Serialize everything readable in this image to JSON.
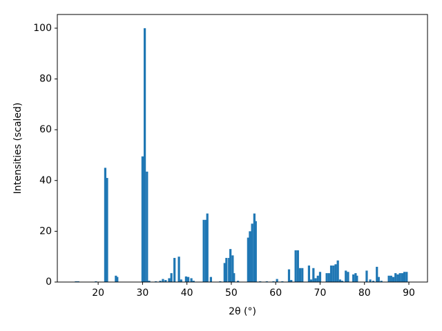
{
  "chart_data": {
    "type": "bar",
    "xlabel": "2θ (°)",
    "ylabel": "Intensities (scaled)",
    "color": "#1f77b4",
    "x": [
      15.0,
      15.5,
      19.5,
      21.6,
      22.0,
      24.0,
      24.3,
      30.0,
      30.5,
      31.0,
      31.5,
      33.0,
      34.0,
      34.6,
      35.2,
      36.0,
      36.5,
      37.2,
      38.2,
      38.7,
      39.8,
      40.3,
      41.0,
      41.5,
      43.8,
      44.3,
      44.6,
      45.4,
      47.5,
      48.5,
      48.9,
      49.5,
      49.8,
      50.3,
      50.6,
      51.5,
      53.8,
      54.2,
      54.7,
      55.2,
      55.5,
      56.5,
      58.0,
      59.5,
      60.3,
      61.5,
      63.0,
      63.5,
      64.5,
      65.0,
      65.5,
      66.0,
      67.5,
      68.0,
      68.5,
      69.0,
      69.5,
      70.0,
      71.5,
      72.0,
      72.5,
      73.0,
      73.5,
      74.0,
      74.5,
      75.0,
      75.8,
      76.3,
      77.5,
      78.0,
      78.3,
      80.5,
      81.3,
      82.0,
      82.8,
      83.2,
      83.8,
      85.5,
      86.0,
      86.5,
      87.0,
      87.5,
      88.0,
      88.5,
      89.0,
      89.5
    ],
    "values": [
      0.3,
      0.3,
      0.3,
      45,
      41,
      2.5,
      2,
      49.5,
      100,
      43.5,
      0.5,
      0.3,
      0.5,
      1.2,
      0.8,
      1.5,
      3.5,
      9.5,
      10,
      1,
      2.2,
      2,
      1.5,
      0.5,
      24.5,
      24.5,
      27,
      2,
      0.3,
      7.5,
      9.5,
      9.5,
      13,
      10.5,
      3.5,
      0.5,
      17.5,
      20,
      23,
      27,
      24,
      0.3,
      0.3,
      0.3,
      1.2,
      0.3,
      5,
      0.8,
      12.5,
      12.5,
      5.5,
      5.5,
      6.5,
      1,
      5.5,
      1.5,
      2.5,
      4,
      3.5,
      3.5,
      6.5,
      6.5,
      7,
      8.5,
      1,
      0.5,
      4.5,
      4,
      3,
      3.5,
      2.5,
      4.5,
      1,
      0.5,
      6,
      2,
      0.5,
      2.5,
      2.5,
      2,
      3.5,
      3,
      3.5,
      3.5,
      4,
      4
    ],
    "xlim": [
      10.8,
      94.2
    ],
    "ylim": [
      0,
      105.4
    ],
    "xticks": [
      20,
      30,
      40,
      50,
      60,
      70,
      80,
      90
    ],
    "yticks": [
      0,
      20,
      40,
      60,
      80,
      100
    ]
  }
}
